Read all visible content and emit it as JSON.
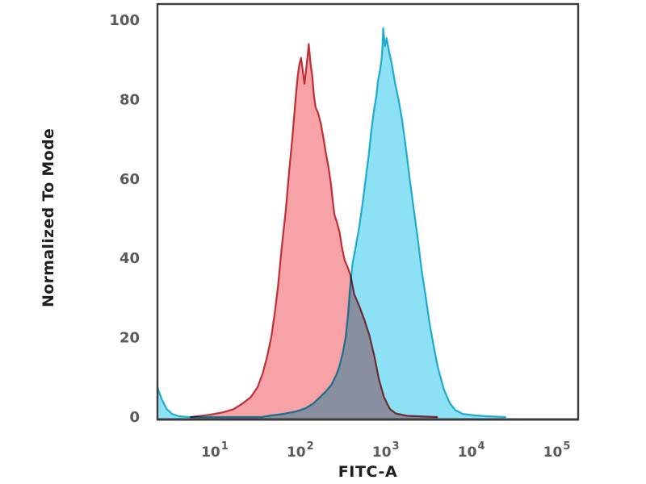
{
  "figure": {
    "background": "#ffffff",
    "frame_color": "#3b3b3b"
  },
  "chart_data": {
    "type": "area",
    "subtype": "flow-cytometry-histogram",
    "title": "",
    "xlabel": "FITC-A",
    "ylabel": "Normalized To Mode",
    "x_scale": "log10",
    "x_range_log10": [
      0.33,
      5.25
    ],
    "x_tick_base": "10",
    "x_tick_exponents": [
      "1",
      "2",
      "3",
      "4",
      "5"
    ],
    "ylim": [
      0,
      100
    ],
    "y_ticks": [
      "0",
      "20",
      "40",
      "60",
      "80",
      "100"
    ],
    "grid": false,
    "legend": null,
    "series": [
      {
        "name": "red",
        "stroke": "#c23b43",
        "fill": "#f7a2a7",
        "peak_mode_log10x": 2.1,
        "peak_value": 94,
        "points": [
          [
            0.72,
            0
          ],
          [
            0.95,
            0.6
          ],
          [
            1.1,
            1.2
          ],
          [
            1.22,
            2
          ],
          [
            1.33,
            3.5
          ],
          [
            1.42,
            5
          ],
          [
            1.5,
            7.5
          ],
          [
            1.56,
            11
          ],
          [
            1.61,
            15
          ],
          [
            1.66,
            20
          ],
          [
            1.7,
            26
          ],
          [
            1.74,
            33
          ],
          [
            1.78,
            42
          ],
          [
            1.83,
            52
          ],
          [
            1.87,
            62
          ],
          [
            1.91,
            71
          ],
          [
            1.94,
            79
          ],
          [
            1.97,
            86
          ],
          [
            1.99,
            89
          ],
          [
            2.01,
            90.5
          ],
          [
            2.04,
            85.5
          ],
          [
            2.05,
            84
          ],
          [
            2.07,
            88
          ],
          [
            2.09,
            92
          ],
          [
            2.1,
            94
          ],
          [
            2.12,
            89
          ],
          [
            2.14,
            86
          ],
          [
            2.16,
            81
          ],
          [
            2.18,
            78
          ],
          [
            2.21,
            76.5
          ],
          [
            2.24,
            74
          ],
          [
            2.27,
            70.5
          ],
          [
            2.3,
            66.5
          ],
          [
            2.33,
            63
          ],
          [
            2.36,
            58.5
          ],
          [
            2.38,
            54.5
          ],
          [
            2.4,
            51
          ],
          [
            2.43,
            49
          ],
          [
            2.46,
            46.5
          ],
          [
            2.49,
            42.5
          ],
          [
            2.52,
            39.5
          ],
          [
            2.56,
            37.5
          ],
          [
            2.59,
            35.5
          ],
          [
            2.63,
            31
          ],
          [
            2.69,
            28
          ],
          [
            2.75,
            24.5
          ],
          [
            2.81,
            20.5
          ],
          [
            2.87,
            15
          ],
          [
            2.92,
            9.5
          ],
          [
            2.98,
            5
          ],
          [
            3.05,
            2
          ],
          [
            3.12,
            0.9
          ],
          [
            3.25,
            0.3
          ],
          [
            3.6,
            0
          ]
        ]
      },
      {
        "name": "cyan",
        "stroke": "#29b6d6",
        "fill": "#8ce2f4",
        "peak_mode_log10x": 2.97,
        "peak_value": 98,
        "points": [
          [
            0.33,
            7.5
          ],
          [
            0.38,
            4.5
          ],
          [
            0.44,
            2
          ],
          [
            0.5,
            0.8
          ],
          [
            0.58,
            0.2
          ],
          [
            0.7,
            0
          ],
          [
            1.55,
            0
          ],
          [
            1.66,
            0.4
          ],
          [
            1.8,
            0.8
          ],
          [
            1.95,
            1.4
          ],
          [
            2.06,
            2.2
          ],
          [
            2.15,
            3.4
          ],
          [
            2.23,
            5
          ],
          [
            2.3,
            6.5
          ],
          [
            2.36,
            8
          ],
          [
            2.42,
            10.5
          ],
          [
            2.46,
            13
          ],
          [
            2.5,
            16.5
          ],
          [
            2.53,
            20
          ],
          [
            2.56,
            26
          ],
          [
            2.58,
            32
          ],
          [
            2.61,
            38.5
          ],
          [
            2.64,
            42
          ],
          [
            2.69,
            48
          ],
          [
            2.73,
            54
          ],
          [
            2.77,
            61
          ],
          [
            2.8,
            66
          ],
          [
            2.83,
            72
          ],
          [
            2.86,
            77
          ],
          [
            2.89,
            81
          ],
          [
            2.91,
            85
          ],
          [
            2.93,
            87
          ],
          [
            2.95,
            90
          ],
          [
            2.96,
            93
          ],
          [
            2.97,
            98
          ],
          [
            2.99,
            93.5
          ],
          [
            3.01,
            95.5
          ],
          [
            3.04,
            92
          ],
          [
            3.07,
            89
          ],
          [
            3.11,
            84
          ],
          [
            3.15,
            80
          ],
          [
            3.19,
            75
          ],
          [
            3.24,
            67
          ],
          [
            3.28,
            60
          ],
          [
            3.33,
            52
          ],
          [
            3.38,
            44
          ],
          [
            3.42,
            37
          ],
          [
            3.47,
            30
          ],
          [
            3.51,
            24
          ],
          [
            3.56,
            18
          ],
          [
            3.61,
            12.5
          ],
          [
            3.68,
            7
          ],
          [
            3.75,
            3.5
          ],
          [
            3.81,
            1.8
          ],
          [
            3.9,
            0.8
          ],
          [
            4.05,
            0.4
          ],
          [
            4.2,
            0.2
          ],
          [
            4.4,
            0
          ]
        ]
      }
    ]
  }
}
